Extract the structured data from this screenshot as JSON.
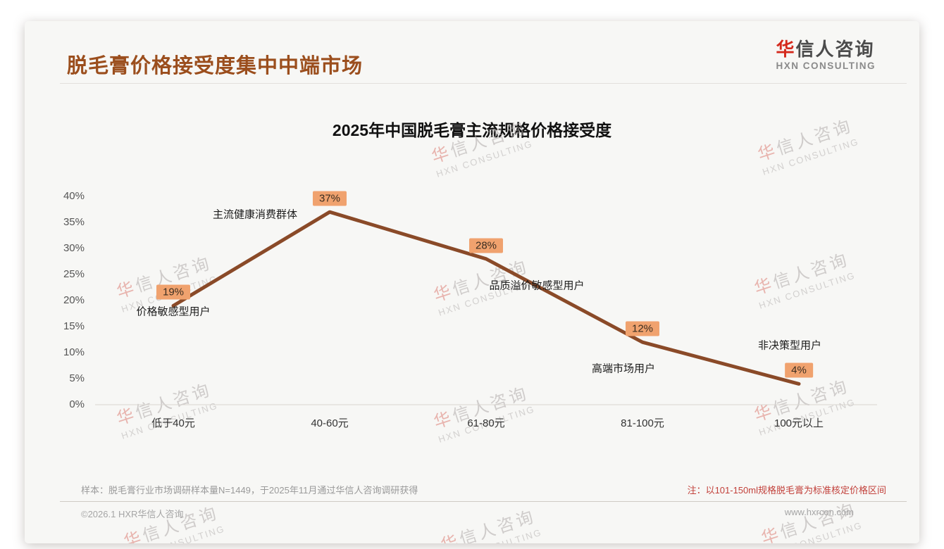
{
  "page": {
    "title": "脱毛膏价格接受度集中中端市场",
    "logo": {
      "cn_first": "华",
      "cn_rest": "信人咨询",
      "en": "HXN CONSULTING"
    },
    "watermark": {
      "line1": "华信人咨询",
      "line2": "HXN CONSULTING"
    },
    "notes": {
      "sample": "样本：脱毛膏行业市场调研样本量N=1449，于2025年11月通过华信人咨询调研获得",
      "standard": "注：以101-150ml规格脱毛膏为标准核定价格区间"
    },
    "footer": {
      "left": "©2026.1 HXR华信人咨询",
      "right": "www.hxrcon.com"
    }
  },
  "chart_data": {
    "type": "line",
    "title": "2025年中国脱毛膏主流规格价格接受度",
    "categories": [
      "低于40元",
      "40-60元",
      "61-80元",
      "81-100元",
      "100元以上"
    ],
    "values": [
      19,
      37,
      28,
      12,
      4
    ],
    "value_labels": [
      "19%",
      "37%",
      "28%",
      "12%",
      "4%"
    ],
    "annotations": [
      "价格敏感型用户",
      "主流健康消费群体",
      "品质溢价敏感型用户",
      "高端市场用户",
      "非决策型用户"
    ],
    "xlabel": "",
    "ylabel": "",
    "ylim": [
      0,
      40
    ],
    "ytick_step": 5,
    "ytick_labels": [
      "0%",
      "5%",
      "10%",
      "15%",
      "20%",
      "25%",
      "30%",
      "35%",
      "40%"
    ],
    "grid": false,
    "legend": false,
    "line_color": "#8a4a28",
    "label_bg": "#f0a26e"
  }
}
